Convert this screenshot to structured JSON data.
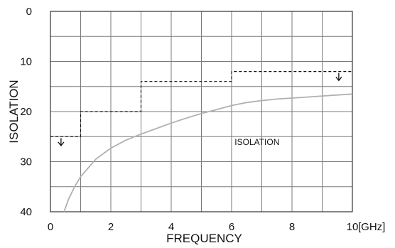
{
  "chart_data": {
    "type": "line",
    "title": "",
    "xlabel": "FREQUENCY",
    "ylabel": "ISOLATION",
    "x_unit_label": "[GHz]",
    "xlim": [
      0,
      10
    ],
    "ylim": [
      40,
      0
    ],
    "y_inverted": true,
    "grid": true,
    "x_ticks": [
      0,
      2,
      4,
      6,
      8,
      10
    ],
    "y_ticks": [
      0,
      10,
      20,
      30,
      40
    ],
    "x_tick_labels": [
      "0",
      "2",
      "4",
      "6",
      "8",
      "10"
    ],
    "y_tick_labels": [
      "0",
      "10",
      "20",
      "30",
      "40"
    ],
    "annotation": "ISOLATION",
    "colors": {
      "curve": "#b0b0b0",
      "spec": "#111111",
      "grid": "#7a7a7a"
    },
    "series": [
      {
        "style": "solid",
        "x": [
          0.45,
          0.6,
          0.8,
          1.0,
          1.5,
          2.0,
          2.5,
          3.0,
          3.5,
          4.0,
          4.5,
          5.0,
          5.5,
          6.0,
          6.5,
          7.0,
          7.5,
          8.0,
          8.5,
          9.0,
          9.5,
          10.0
        ],
        "y": [
          40.0,
          37.5,
          35.0,
          33.0,
          29.5,
          27.3,
          25.7,
          24.5,
          23.4,
          22.3,
          21.3,
          20.4,
          19.6,
          18.8,
          18.2,
          17.8,
          17.5,
          17.3,
          17.1,
          16.9,
          16.7,
          16.5
        ]
      },
      {
        "style": "dashed",
        "x": [
          0,
          1,
          1,
          3,
          3,
          6,
          6,
          10
        ],
        "y": [
          25,
          25,
          20,
          20,
          14,
          14,
          12,
          12
        ]
      }
    ],
    "arrows": [
      {
        "x": 0.35,
        "y_from": 25.3,
        "y_to": 26.8
      },
      {
        "x": 9.55,
        "y_from": 12.3,
        "y_to": 13.8
      }
    ]
  }
}
